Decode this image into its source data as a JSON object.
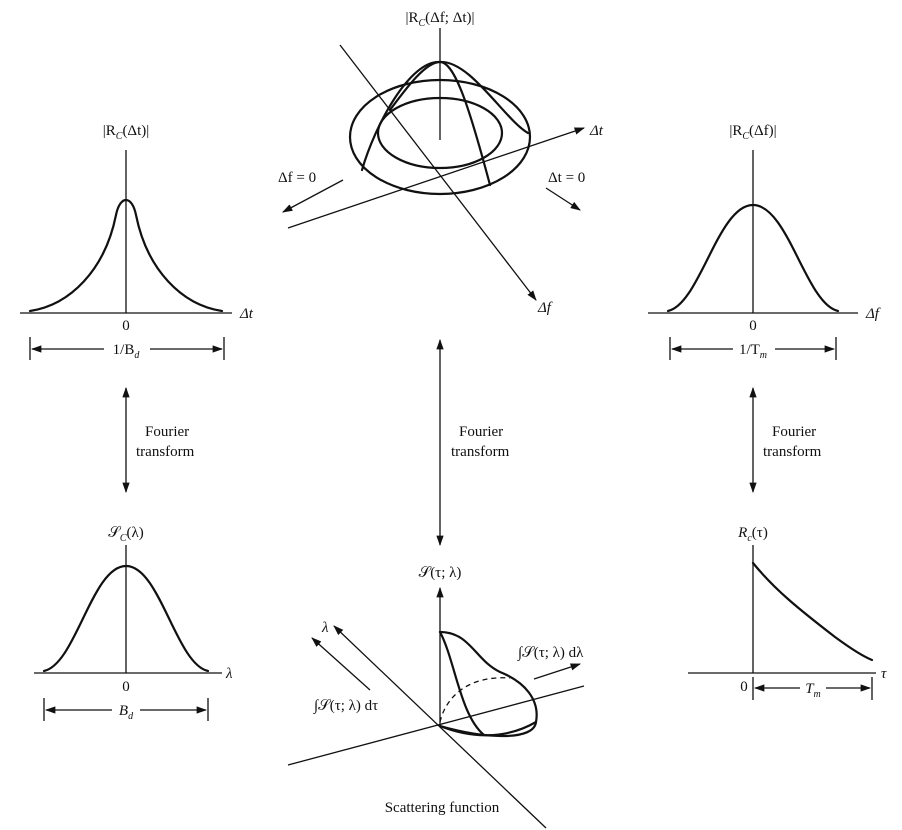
{
  "panels": {
    "spaced_time_corr": {
      "ylabel": "|R",
      "ylabel_sub": "C",
      "ylabel_arg": "(Δt)|",
      "xlabel": "Δt",
      "origin": "0",
      "width_label": "1/B",
      "width_label_sub": "d"
    },
    "spaced_freq_corr": {
      "ylabel": "|R",
      "ylabel_sub": "C",
      "ylabel_arg": "(Δf)|",
      "xlabel": "Δf",
      "origin": "0",
      "width_label": "1/T",
      "width_label_sub": "m"
    },
    "joint_corr": {
      "zlabel": "|R",
      "zlabel_sub": "C",
      "zlabel_arg": "(Δf; Δt)|",
      "axis_t": "Δt",
      "axis_f": "Δf",
      "slice_f0": "Δf = 0",
      "slice_t0": "Δt = 0"
    },
    "doppler_spectrum": {
      "ylabel": "𝒮",
      "ylabel_sub": "C",
      "ylabel_arg": "(λ)",
      "xlabel": "λ",
      "origin": "0",
      "width_label": "B",
      "width_label_sub": "d"
    },
    "delay_profile": {
      "ylabel": "R",
      "ylabel_sub": "c",
      "ylabel_arg": "(τ)",
      "xlabel": "τ",
      "origin": "0",
      "width_label": "T",
      "width_label_sub": "m"
    },
    "scattering": {
      "zlabel": "𝒮(τ; λ)",
      "axis_lambda": "λ",
      "integral_tau": "∫𝒮(τ; λ) dτ",
      "integral_lambda": "∫𝒮(τ; λ) dλ",
      "caption": "Scattering function"
    }
  },
  "transforms": {
    "left_line1": "Fourier",
    "left_line2": "transform",
    "center_line1": "Fourier",
    "center_line2": "transform",
    "right_line1": "Fourier",
    "right_line2": "transform"
  }
}
